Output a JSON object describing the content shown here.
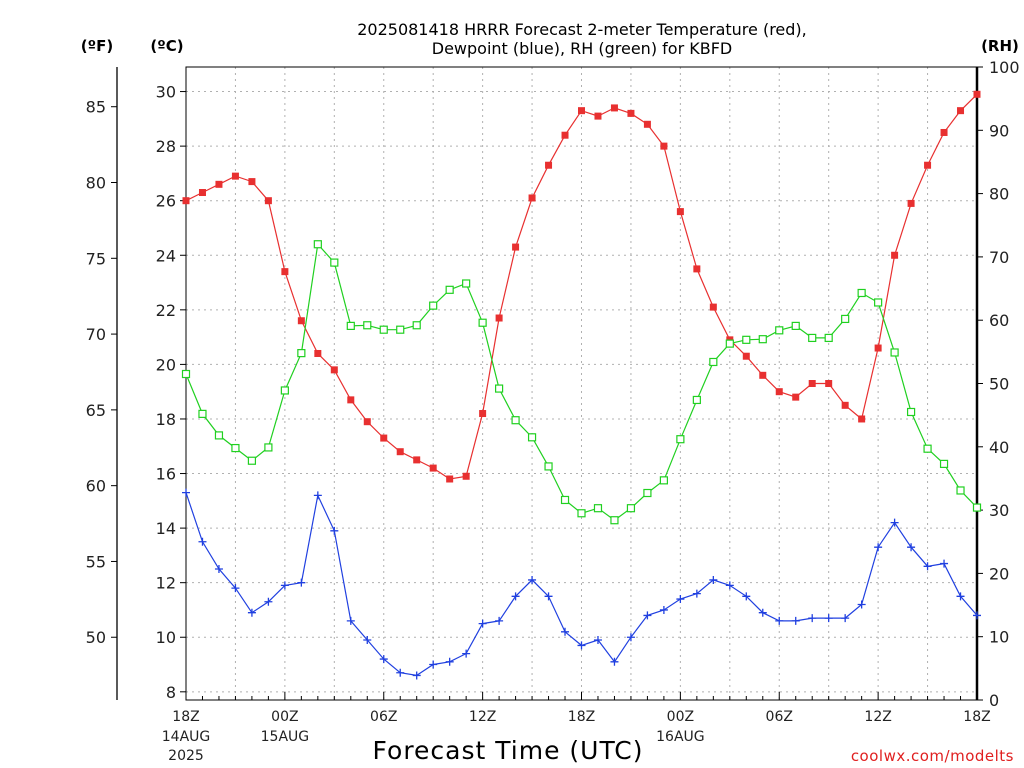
{
  "chart_data": {
    "type": "line",
    "title_line1": "2025081418 HRRR Forecast 2-meter Temperature (red),",
    "title_line2": "Dewpoint (blue), RH (green) for KBFD",
    "xlabel": "Forecast Time (UTC)",
    "credit": "coolwx.com/modelts",
    "units": {
      "fahrenheit": "(ºF)",
      "celsius": "(ºC)",
      "rh": "(RH)"
    },
    "x_ticks": [
      {
        "hour": 0,
        "label": "18Z",
        "date_line1": "14AUG",
        "date_line2": "2025"
      },
      {
        "hour": 6,
        "label": "00Z",
        "date_line1": "15AUG",
        "date_line2": ""
      },
      {
        "hour": 12,
        "label": "06Z",
        "date_line1": "",
        "date_line2": ""
      },
      {
        "hour": 18,
        "label": "12Z",
        "date_line1": "",
        "date_line2": ""
      },
      {
        "hour": 24,
        "label": "18Z",
        "date_line1": "",
        "date_line2": ""
      },
      {
        "hour": 30,
        "label": "00Z",
        "date_line1": "16AUG",
        "date_line2": ""
      },
      {
        "hour": 36,
        "label": "06Z",
        "date_line1": "",
        "date_line2": ""
      },
      {
        "hour": 42,
        "label": "12Z",
        "date_line1": "",
        "date_line2": ""
      },
      {
        "hour": 48,
        "label": "18Z",
        "date_line1": "",
        "date_line2": ""
      }
    ],
    "x_range_hours": [
      0,
      48
    ],
    "ylim_celsius": [
      7.7,
      30.9
    ],
    "ylim_rh": [
      0,
      100
    ],
    "yticks_celsius": [
      8,
      10,
      12,
      14,
      16,
      18,
      20,
      22,
      24,
      26,
      28,
      30
    ],
    "yticks_fahrenheit": [
      50,
      55,
      60,
      65,
      70,
      75,
      80,
      85
    ],
    "yticks_rh": [
      0,
      10,
      20,
      30,
      40,
      50,
      60,
      70,
      80,
      90,
      100
    ],
    "grid": true,
    "series": [
      {
        "name": "Temperature",
        "color": "#e83030",
        "units": "celsius",
        "marker": "filled-square",
        "values": [
          26.0,
          26.3,
          26.6,
          26.9,
          26.7,
          26.0,
          23.4,
          21.6,
          20.4,
          19.8,
          18.7,
          17.9,
          17.3,
          16.8,
          16.5,
          16.2,
          15.8,
          15.9,
          18.2,
          21.7,
          24.3,
          26.1,
          27.3,
          28.4,
          29.3,
          29.1,
          29.4,
          29.2,
          28.8,
          28.0,
          25.6,
          23.5,
          22.1,
          20.9,
          20.3,
          19.6,
          19.0,
          18.8,
          19.3,
          19.3,
          18.5,
          18.0,
          20.6,
          24.0,
          25.9,
          27.3,
          28.5,
          29.3,
          29.9
        ]
      },
      {
        "name": "Dewpoint",
        "color": "#2040e0",
        "units": "celsius",
        "marker": "plus",
        "values": [
          15.3,
          13.5,
          12.5,
          11.8,
          10.9,
          11.3,
          11.9,
          12.0,
          15.2,
          13.9,
          10.6,
          9.9,
          9.2,
          8.7,
          8.6,
          9.0,
          9.1,
          9.4,
          10.5,
          10.6,
          11.5,
          12.1,
          11.5,
          10.2,
          9.7,
          9.9,
          9.1,
          10.0,
          10.8,
          11.0,
          11.4,
          11.6,
          12.1,
          11.9,
          11.5,
          10.9,
          10.6,
          10.6,
          10.7,
          10.7,
          10.7,
          11.2,
          13.3,
          14.2,
          13.3,
          12.6,
          12.7,
          11.5,
          10.8
        ]
      },
      {
        "name": "RH",
        "color": "#20d020",
        "units": "rh",
        "marker": "open-square",
        "values": [
          51.5,
          45.2,
          41.8,
          39.8,
          37.8,
          39.9,
          48.9,
          54.8,
          72.0,
          69.1,
          59.1,
          59.2,
          58.5,
          58.5,
          59.2,
          62.3,
          64.8,
          65.8,
          59.6,
          49.2,
          44.2,
          41.5,
          36.9,
          31.6,
          29.5,
          30.3,
          28.4,
          30.3,
          32.7,
          34.7,
          41.2,
          47.4,
          53.4,
          56.3,
          56.9,
          57.0,
          58.4,
          59.1,
          57.2,
          57.2,
          60.2,
          64.3,
          62.8,
          54.9,
          45.5,
          39.7,
          37.3,
          33.1,
          30.4
        ]
      }
    ]
  }
}
